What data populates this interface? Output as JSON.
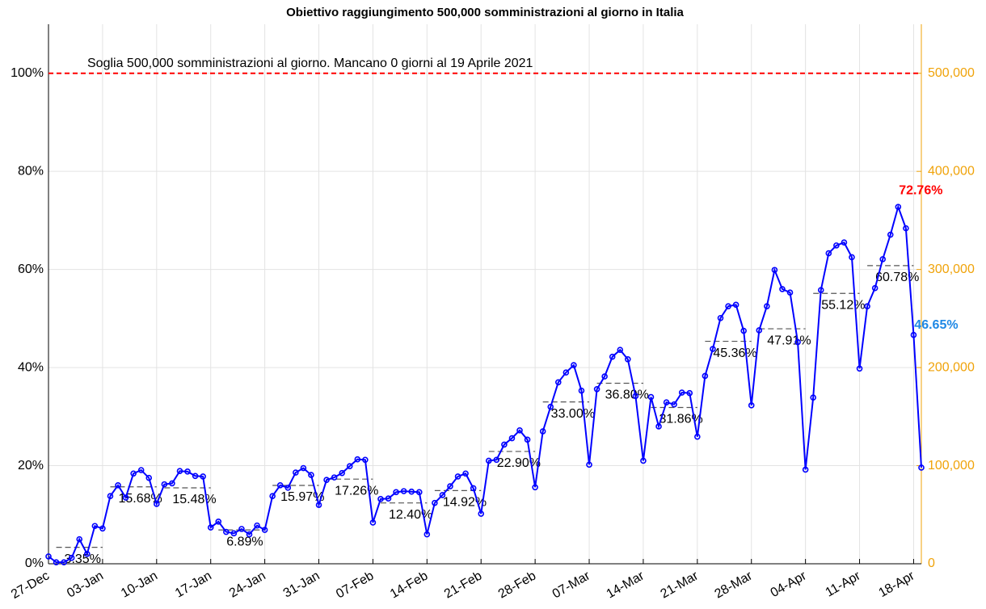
{
  "chart_data": {
    "type": "line",
    "title": "Obiettivo raggiungimento 500,000 somministrazioni al giorno in Italia",
    "categories": [
      "27-Dec",
      null,
      null,
      null,
      null,
      null,
      null,
      "03-Jan",
      null,
      null,
      null,
      null,
      null,
      null,
      "10-Jan",
      null,
      null,
      null,
      null,
      null,
      null,
      "17-Jan",
      null,
      null,
      null,
      null,
      null,
      null,
      "24-Jan",
      null,
      null,
      null,
      null,
      null,
      null,
      "31-Jan",
      null,
      null,
      null,
      null,
      null,
      null,
      "07-Feb",
      null,
      null,
      null,
      null,
      null,
      null,
      "14-Feb",
      null,
      null,
      null,
      null,
      null,
      null,
      "21-Feb",
      null,
      null,
      null,
      null,
      null,
      null,
      "28-Feb",
      null,
      null,
      null,
      null,
      null,
      null,
      "07-Mar",
      null,
      null,
      null,
      null,
      null,
      null,
      "14-Mar",
      null,
      null,
      null,
      null,
      null,
      null,
      "21-Mar",
      null,
      null,
      null,
      null,
      null,
      null,
      "28-Mar",
      null,
      null,
      null,
      null,
      null,
      null,
      "04-Apr",
      null,
      null,
      null,
      null,
      null,
      null,
      "11-Apr",
      null,
      null,
      null,
      null,
      null,
      null,
      "18-Apr",
      null
    ],
    "series": [
      {
        "color": "#0000ff",
        "values": [
          1.5,
          0.3,
          0.3,
          1.2,
          5.0,
          2.0,
          7.7,
          7.2,
          13.8,
          16.0,
          13.5,
          18.4,
          19.1,
          17.5,
          12.2,
          16.2,
          16.4,
          18.9,
          18.8,
          17.9,
          17.8,
          7.4,
          8.6,
          6.5,
          6.2,
          7.1,
          6.0,
          7.8,
          6.9,
          13.8,
          16.0,
          15.5,
          18.6,
          19.5,
          18.1,
          12.0,
          17.1,
          17.6,
          18.5,
          19.9,
          21.3,
          21.2,
          8.4,
          13.2,
          13.3,
          14.6,
          14.8,
          14.7,
          14.6,
          6.0,
          12.4,
          14.0,
          15.8,
          17.8,
          18.4,
          15.4,
          10.2,
          21.0,
          21.2,
          24.3,
          25.6,
          27.2,
          25.3,
          15.6,
          27.0,
          32.0,
          37.0,
          39.0,
          40.5,
          35.3,
          20.2,
          35.6,
          38.2,
          42.2,
          43.6,
          41.7,
          34.2,
          21.0,
          34.0,
          28.0,
          32.9,
          32.5,
          34.9,
          34.8,
          25.9,
          38.3,
          43.8,
          50.1,
          52.5,
          52.8,
          47.5,
          32.3,
          47.6,
          52.5,
          59.9,
          56.0,
          55.3,
          45.2,
          19.2,
          33.9,
          55.8,
          63.3,
          64.9,
          65.5,
          62.5,
          39.8,
          52.5,
          56.2,
          62.1,
          67.1,
          72.76,
          68.4,
          46.65,
          19.6
        ],
        "value_labels": [
          null,
          null,
          null,
          null,
          null,
          null,
          null,
          null,
          null,
          null,
          null,
          null,
          null,
          null,
          null,
          null,
          null,
          null,
          null,
          null,
          null,
          null,
          null,
          null,
          null,
          null,
          null,
          null,
          null,
          null,
          null,
          null,
          null,
          null,
          null,
          null,
          null,
          null,
          null,
          null,
          null,
          null,
          null,
          null,
          null,
          null,
          null,
          null,
          null,
          null,
          null,
          null,
          null,
          null,
          null,
          null,
          null,
          null,
          null,
          null,
          null,
          null,
          null,
          null,
          null,
          null,
          null,
          null,
          null,
          null,
          null,
          null,
          null,
          null,
          null,
          null,
          null,
          null,
          null,
          null,
          null,
          null,
          null,
          null,
          null,
          null,
          null,
          null,
          null,
          null,
          null,
          null,
          null,
          null,
          null,
          null,
          null,
          null,
          null,
          null,
          null,
          null,
          null,
          null,
          null,
          null,
          null,
          null,
          null,
          null,
          "72.76%",
          null,
          "46.65%",
          null
        ],
        "max_label_color": "#ff0000",
        "label_color": "#1e88e5"
      }
    ],
    "weekly_average": {
      "color": "#555555",
      "values": [
        3.35,
        15.68,
        15.48,
        6.89,
        15.97,
        17.26,
        12.4,
        14.92,
        22.9,
        33.0,
        36.8,
        31.86,
        45.36,
        47.91,
        55.12,
        60.78
      ],
      "value_labels": [
        "3.35%",
        "15.68%",
        "15.48%",
        "6.89%",
        "15.97%",
        "17.26%",
        "12.40%",
        "14.92%",
        "22.90%",
        "33.00%",
        "36.80%",
        "31.86%",
        "45.36%",
        "47.91%",
        "55.12%",
        "60.78%"
      ]
    },
    "threshold": {
      "value": 100,
      "color": "#ff0000",
      "label": "Soglia 500,000 somministrazioni al giorno. Mancano 0 giorni al 19 Aprile 2021"
    },
    "ylim": [
      0,
      110
    ],
    "yticks": [
      {
        "value": 0,
        "label": "0%"
      },
      {
        "value": 20,
        "label": "20%"
      },
      {
        "value": 40,
        "label": "40%"
      },
      {
        "value": 60,
        "label": "60%"
      },
      {
        "value": 80,
        "label": "80%"
      },
      {
        "value": 100,
        "label": "100%"
      }
    ],
    "y2lim": [
      0,
      550000
    ],
    "y2ticks": [
      0,
      {
        "value": 100000,
        "label": "100,000"
      },
      {
        "value": 200000,
        "label": "200,000"
      },
      {
        "value": 300000,
        "label": "300,000"
      },
      {
        "value": 400000,
        "label": "400,000"
      },
      {
        "value": 500000,
        "label": "500,000"
      }
    ],
    "y2color": "#f0a30a",
    "grid": true
  }
}
